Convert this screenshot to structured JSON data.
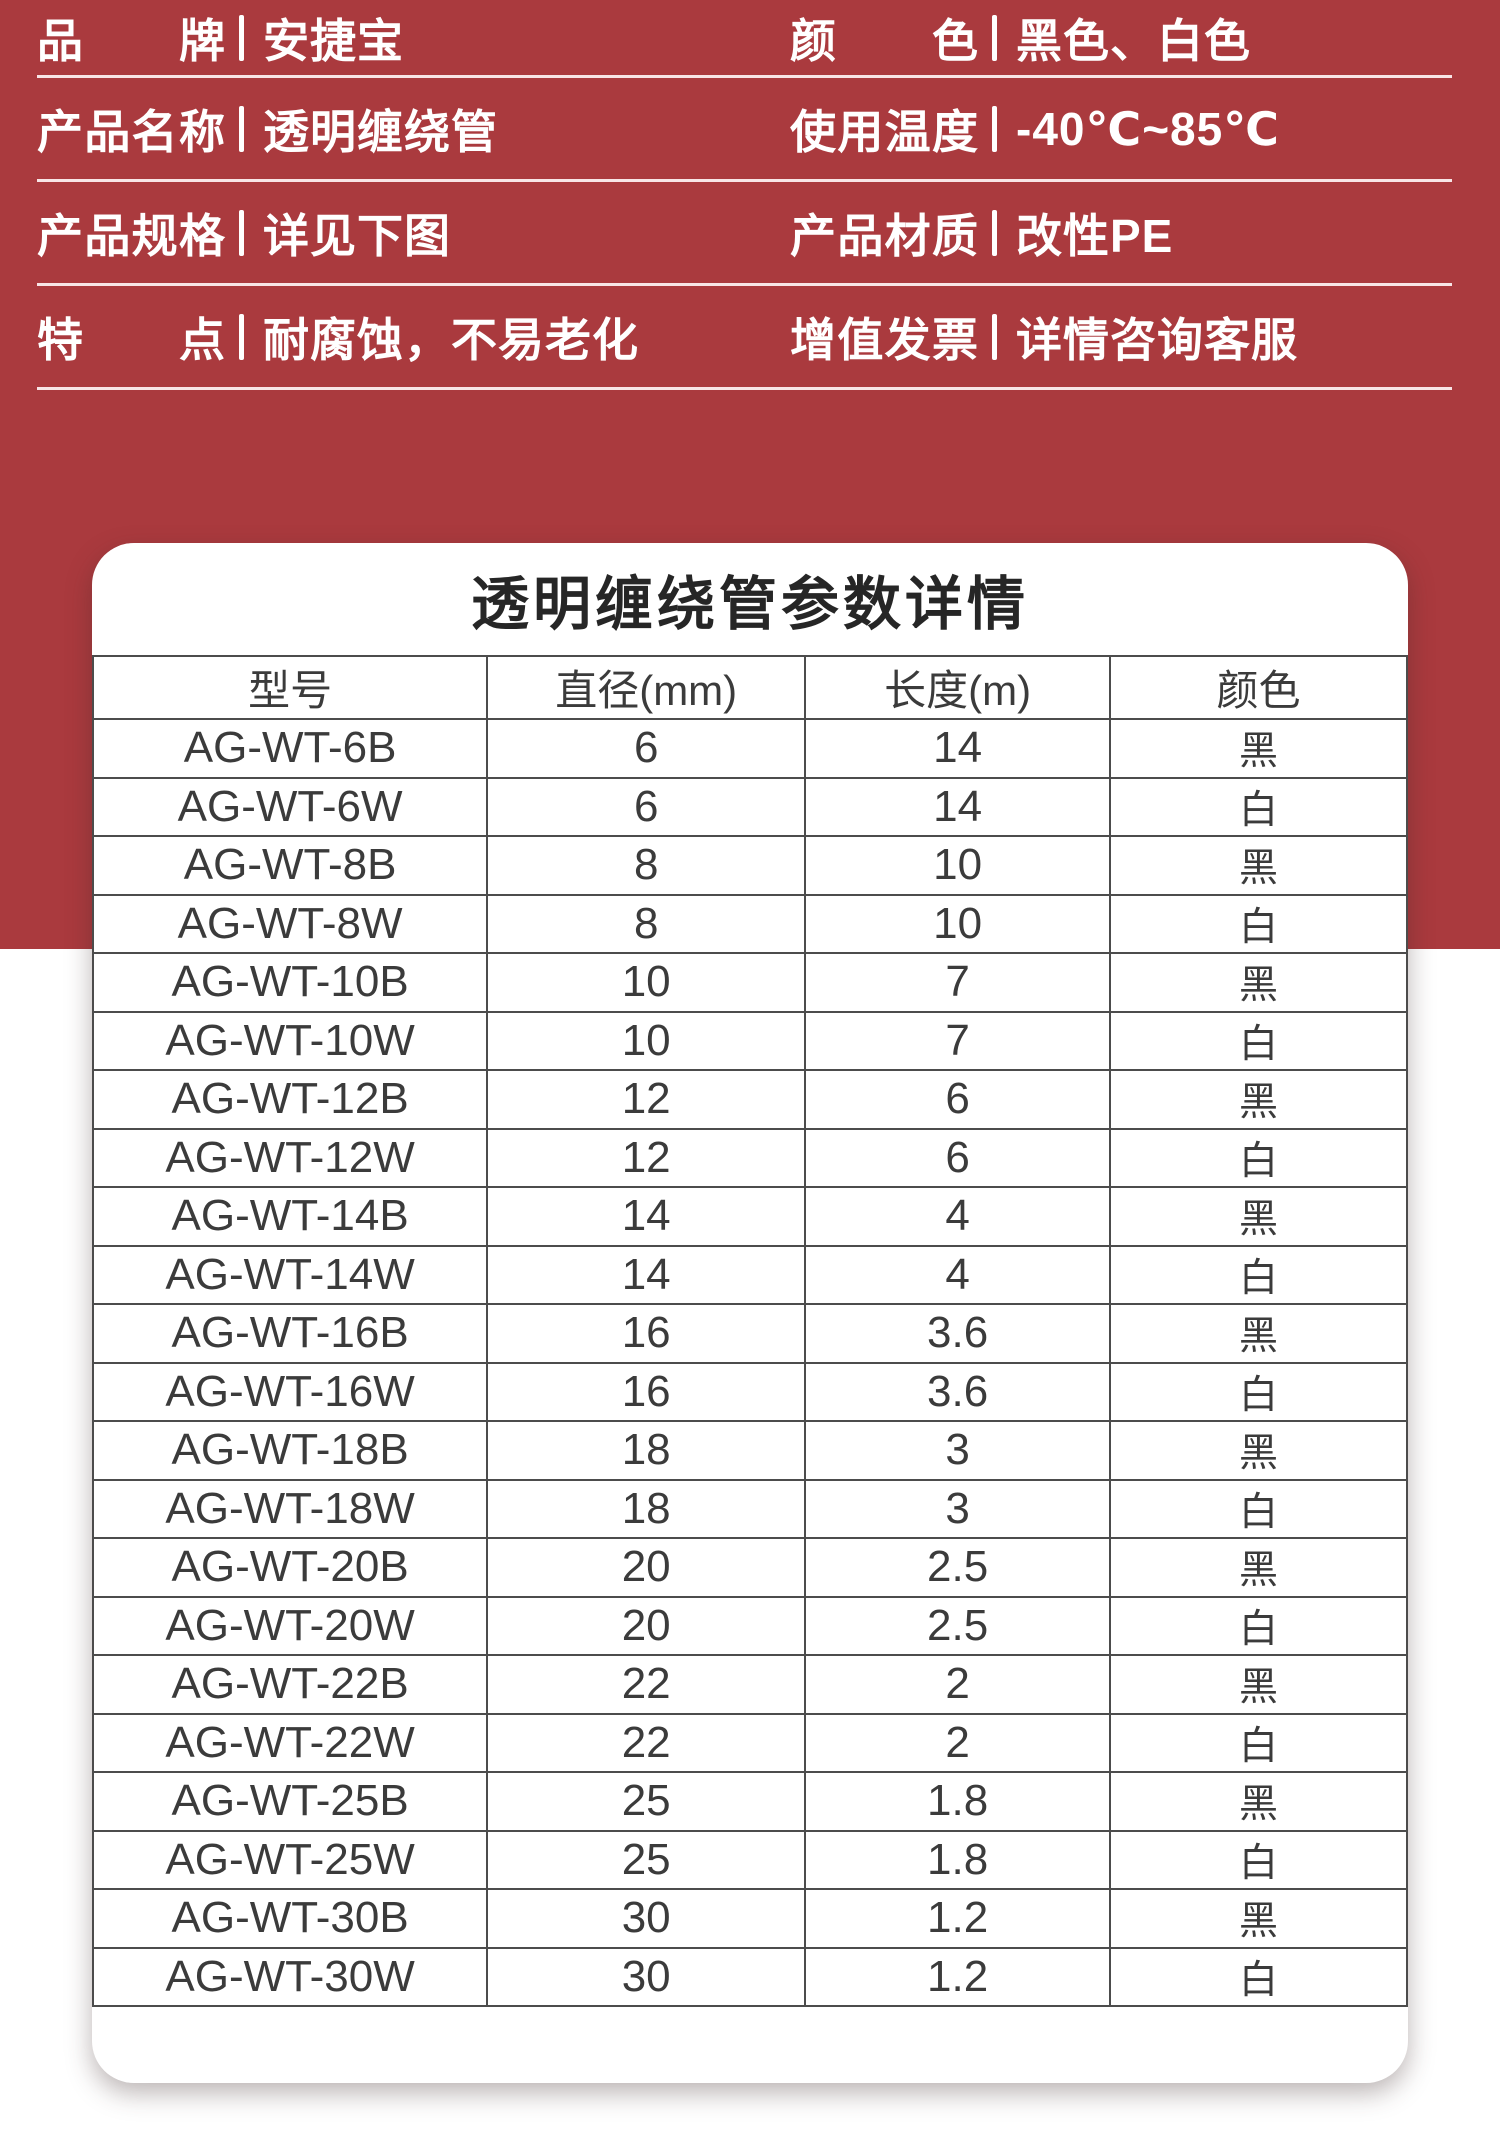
{
  "colors": {
    "red_background": "#aa3a3e",
    "divider_line": "#f6e9e9",
    "table_border": "#4c4c4c",
    "table_text": "#3b3b3b",
    "title_text": "#262626",
    "spec_text": "#ffffff"
  },
  "specs": {
    "rows": [
      {
        "left": {
          "label": "品牌",
          "value": "安捷宝"
        },
        "right": {
          "label": "颜色",
          "value": "黑色、白色"
        }
      },
      {
        "left": {
          "label": "产品名称",
          "value": "透明缠绕管"
        },
        "right": {
          "label": "使用温度",
          "value": "-40℃~85℃"
        }
      },
      {
        "left": {
          "label": "产品规格",
          "value": "详见下图"
        },
        "right": {
          "label": "产品材质",
          "value": "改性PE"
        }
      },
      {
        "left": {
          "label": "特点",
          "value": "耐腐蚀，不易老化"
        },
        "right": {
          "label": "增值发票",
          "value": "详情咨询客服"
        }
      }
    ]
  },
  "card": {
    "title": "透明缠绕管参数详情",
    "table": {
      "headers": [
        "型号",
        "直径(mm)",
        "长度(m)",
        "颜色"
      ],
      "rows": [
        [
          "AG-WT-6B",
          "6",
          "14",
          "黑"
        ],
        [
          "AG-WT-6W",
          "6",
          "14",
          "白"
        ],
        [
          "AG-WT-8B",
          "8",
          "10",
          "黑"
        ],
        [
          "AG-WT-8W",
          "8",
          "10",
          "白"
        ],
        [
          "AG-WT-10B",
          "10",
          "7",
          "黑"
        ],
        [
          "AG-WT-10W",
          "10",
          "7",
          "白"
        ],
        [
          "AG-WT-12B",
          "12",
          "6",
          "黑"
        ],
        [
          "AG-WT-12W",
          "12",
          "6",
          "白"
        ],
        [
          "AG-WT-14B",
          "14",
          "4",
          "黑"
        ],
        [
          "AG-WT-14W",
          "14",
          "4",
          "白"
        ],
        [
          "AG-WT-16B",
          "16",
          "3.6",
          "黑"
        ],
        [
          "AG-WT-16W",
          "16",
          "3.6",
          "白"
        ],
        [
          "AG-WT-18B",
          "18",
          "3",
          "黑"
        ],
        [
          "AG-WT-18W",
          "18",
          "3",
          "白"
        ],
        [
          "AG-WT-20B",
          "20",
          "2.5",
          "黑"
        ],
        [
          "AG-WT-20W",
          "20",
          "2.5",
          "白"
        ],
        [
          "AG-WT-22B",
          "22",
          "2",
          "黑"
        ],
        [
          "AG-WT-22W",
          "22",
          "2",
          "白"
        ],
        [
          "AG-WT-25B",
          "25",
          "1.8",
          "黑"
        ],
        [
          "AG-WT-25W",
          "25",
          "1.8",
          "白"
        ],
        [
          "AG-WT-30B",
          "30",
          "1.2",
          "黑"
        ],
        [
          "AG-WT-30W",
          "30",
          "1.2",
          "白"
        ]
      ]
    }
  }
}
